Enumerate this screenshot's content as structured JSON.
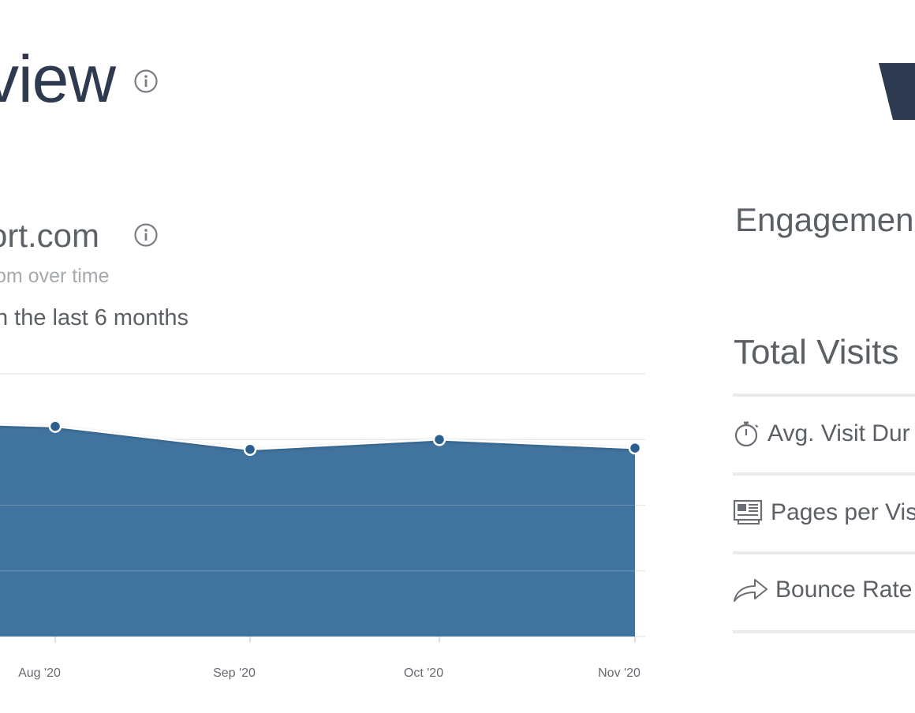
{
  "header": {
    "title": "view"
  },
  "section": {
    "title": "ort.com",
    "subtitle": "om over time",
    "note": "n the last 6 months"
  },
  "engagement": {
    "title": "Engagemen",
    "total_visits_label": "Total Visits",
    "metrics": [
      {
        "label": "Avg. Visit Dur",
        "icon": "stopwatch-icon"
      },
      {
        "label": "Pages per Vis",
        "icon": "pages-icon"
      },
      {
        "label": "Bounce Rate",
        "icon": "share-arrow-icon"
      }
    ]
  },
  "colors": {
    "area_fill": "#40739e",
    "point": "#2a5f8f",
    "title": "#2e3a4f",
    "text": "#5b5f66"
  },
  "chart_data": {
    "type": "area",
    "x": [
      "Aug '20",
      "Sep '20",
      "Oct '20",
      "Nov '20"
    ],
    "series": [
      {
        "values": [
          3.2,
          2.85,
          3.0,
          2.87
        ]
      }
    ],
    "ylim": [
      0,
      4
    ],
    "grid": true,
    "legend": "none"
  }
}
